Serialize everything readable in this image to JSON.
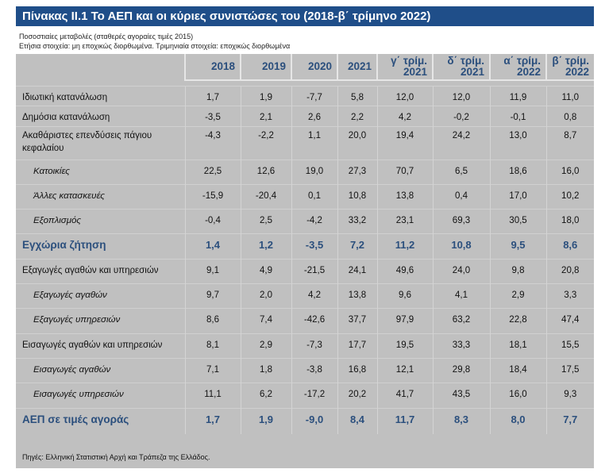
{
  "title": "Πίνακας ΙΙ.1 Το ΑΕΠ και οι κύριες συνιστώσες του (2018-β΄ τρίμηνο 2022)",
  "subtitle1": "Ποσοστιαίες μεταβολές (σταθερές αγοραίες τιμές 2015)",
  "subtitle2": "Ετήσια στοιχεία: μη εποχικώς διορθωμένα. Τριμηνιαία στοιχεία: εποχικώς διορθωμένα",
  "columns": [
    {
      "l1": "",
      "l2": "2018"
    },
    {
      "l1": "",
      "l2": "2019"
    },
    {
      "l1": "",
      "l2": "2020"
    },
    {
      "l1": "",
      "l2": "2021"
    },
    {
      "l1": "γ΄ τρίμ.",
      "l2": "2021"
    },
    {
      "l1": "δ΄ τρίμ.",
      "l2": "2021"
    },
    {
      "l1": "α΄ τρίμ.",
      "l2": "2022"
    },
    {
      "l1": "β΄ τρίμ.",
      "l2": "2022"
    }
  ],
  "rows": [
    {
      "label": "Ιδιωτική κατανάλωση",
      "type": "main",
      "values": [
        "1,7",
        "1,9",
        "-7,7",
        "5,8",
        "12,0",
        "12,0",
        "11,9",
        "11,0"
      ]
    },
    {
      "label": "Δημόσια κατανάλωση",
      "type": "main",
      "values": [
        "-3,5",
        "2,1",
        "2,6",
        "2,2",
        "4,2",
        "-0,2",
        "-0,1",
        "0,8"
      ]
    },
    {
      "label": "Ακαθάριστες επενδύσεις πάγιου κεφαλαίου",
      "type": "main",
      "values": [
        "-4,3",
        "-2,2",
        "1,1",
        "20,0",
        "19,4",
        "24,2",
        "13,0",
        "8,7"
      ]
    },
    {
      "label": "Κατοικίες",
      "type": "sub",
      "values": [
        "22,5",
        "12,6",
        "19,0",
        "27,3",
        "70,7",
        "6,5",
        "18,6",
        "16,0"
      ]
    },
    {
      "label": "Άλλες κατασκευές",
      "type": "sub",
      "values": [
        "-15,9",
        "-20,4",
        "0,1",
        "10,8",
        "13,8",
        "0,4",
        "17,0",
        "10,2"
      ]
    },
    {
      "label": "Εξοπλισμός",
      "type": "sub",
      "values": [
        "-0,4",
        "2,5",
        "-4,2",
        "33,2",
        "23,1",
        "69,3",
        "30,5",
        "18,0"
      ]
    },
    {
      "label": "Εγχώρια ζήτηση",
      "type": "tot",
      "values": [
        "1,4",
        "1,2",
        "-3,5",
        "7,2",
        "11,2",
        "10,8",
        "9,5",
        "8,6"
      ]
    },
    {
      "label": "Εξαγωγές αγαθών και υπηρεσιών",
      "type": "main",
      "values": [
        "9,1",
        "4,9",
        "-21,5",
        "24,1",
        "49,6",
        "24,0",
        "9,8",
        "20,8"
      ]
    },
    {
      "label": "Εξαγωγές αγαθών",
      "type": "sub",
      "values": [
        "9,7",
        "2,0",
        "4,2",
        "13,8",
        "9,6",
        "4,1",
        "2,9",
        "3,3"
      ]
    },
    {
      "label": "Εξαγωγές υπηρεσιών",
      "type": "sub",
      "values": [
        "8,6",
        "7,4",
        "-42,6",
        "37,7",
        "97,9",
        "63,2",
        "22,8",
        "47,4"
      ]
    },
    {
      "label": "Εισαγωγές αγαθών και υπηρεσιών",
      "type": "main",
      "values": [
        "8,1",
        "2,9",
        "-7,3",
        "17,7",
        "19,5",
        "33,3",
        "18,1",
        "15,5"
      ]
    },
    {
      "label": "Εισαγωγές αγαθών",
      "type": "sub",
      "values": [
        "7,1",
        "1,8",
        "-3,8",
        "16,8",
        "12,1",
        "29,8",
        "18,4",
        "17,5"
      ]
    },
    {
      "label": "Εισαγωγές υπηρεσιών",
      "type": "sub",
      "values": [
        "11,1",
        "6,2",
        "-17,2",
        "20,2",
        "41,7",
        "43,5",
        "16,0",
        "9,3"
      ]
    },
    {
      "label": "ΑΕΠ σε τιμές αγοράς",
      "type": "tot",
      "values": [
        "1,7",
        "1,9",
        "-9,0",
        "8,4",
        "11,7",
        "8,3",
        "8,0",
        "7,7"
      ]
    }
  ],
  "source": "Πηγές: Ελληνική Στατιστική Αρχή και Τράπεζα της Ελλάδος.",
  "colors": {
    "title_bg": "#1f4e89",
    "accent_text": "#2b4f7d",
    "table_bg": "#c0c0c0"
  }
}
